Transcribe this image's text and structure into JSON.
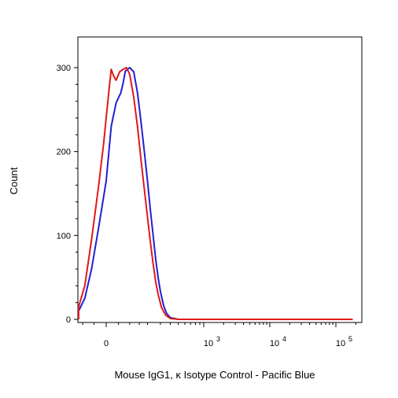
{
  "chart_data": {
    "type": "line",
    "title": "",
    "xlabel": "Mouse IgG1, κ Isotype Control - Pacific Blue",
    "ylabel": "Count",
    "x_scale": "biexponential",
    "xlim": [
      -300,
      200000
    ],
    "ylim": [
      0,
      330
    ],
    "y_ticks": [
      0,
      100,
      200,
      300
    ],
    "y_tick_labels": [
      "0",
      "100",
      "200",
      "300"
    ],
    "x_tick_labels": [
      {
        "base": "0",
        "exp": ""
      },
      {
        "base": "10",
        "exp": "3"
      },
      {
        "base": "10",
        "exp": "4"
      },
      {
        "base": "10",
        "exp": "5"
      }
    ],
    "grid": false,
    "legend": "none",
    "series": [
      {
        "color": "#1f1fd6",
        "x": [
          -240,
          -190,
          -150,
          -120,
          -90,
          -60,
          -30,
          0,
          20,
          40,
          60,
          70,
          80,
          100,
          120,
          140,
          160,
          180,
          200,
          220,
          240,
          260,
          280,
          300,
          330,
          360,
          400,
          500,
          700,
          1000,
          3000,
          10000,
          100000,
          180000
        ],
        "y": [
          0,
          1,
          4,
          10,
          25,
          60,
          110,
          165,
          230,
          258,
          270,
          282,
          296,
          300,
          295,
          270,
          235,
          200,
          165,
          130,
          100,
          72,
          50,
          33,
          16,
          7,
          2,
          0,
          0,
          0,
          0,
          0,
          0,
          0
        ]
      },
      {
        "color": "#e01818",
        "x": [
          -240,
          -190,
          -150,
          -120,
          -90,
          -60,
          -30,
          -10,
          0,
          10,
          20,
          30,
          40,
          55,
          70,
          85,
          100,
          120,
          140,
          160,
          180,
          200,
          220,
          240,
          260,
          280,
          310,
          350,
          400,
          500,
          700,
          1000,
          3000,
          10000,
          100000,
          180000
        ],
        "y": [
          0,
          2,
          6,
          15,
          40,
          95,
          160,
          210,
          240,
          270,
          298,
          290,
          285,
          295,
          298,
          300,
          292,
          265,
          230,
          190,
          155,
          122,
          92,
          66,
          45,
          30,
          14,
          5,
          1,
          0,
          0,
          0,
          0,
          0,
          0,
          0
        ]
      }
    ]
  }
}
